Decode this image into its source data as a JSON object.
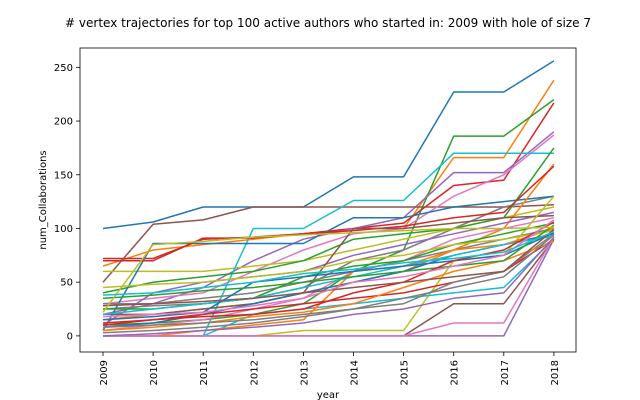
{
  "chart_data": {
    "type": "line",
    "title": "# vertex trajectories for top 100 active authors who started in: 2009 with hole of size 7",
    "xlabel": "year",
    "ylabel": "num_Collaborations",
    "categories": [
      "2009",
      "2010",
      "2011",
      "2012",
      "2013",
      "2014",
      "2015",
      "2016",
      "2017",
      "2018"
    ],
    "ylim": [
      -15,
      268
    ],
    "yticks": [
      0,
      50,
      100,
      150,
      200,
      250
    ],
    "grid": false,
    "legend": "none",
    "palette": [
      "#1f77b4",
      "#ff7f0e",
      "#2ca02c",
      "#d62728",
      "#9467bd",
      "#8c564b",
      "#e377c2",
      "#7f7f7f",
      "#bcbd22",
      "#17becf"
    ],
    "series": [
      {
        "values": [
          100,
          106,
          120,
          120,
          120,
          148,
          148,
          227,
          227,
          256
        ]
      },
      {
        "values": [
          65,
          80,
          85,
          90,
          95,
          100,
          100,
          166,
          166,
          238
        ]
      },
      {
        "values": [
          10,
          12,
          15,
          20,
          30,
          60,
          80,
          186,
          186,
          220
        ]
      },
      {
        "values": [
          72,
          72,
          90,
          92,
          95,
          100,
          105,
          140,
          145,
          217
        ]
      },
      {
        "values": [
          20,
          30,
          45,
          70,
          90,
          100,
          110,
          152,
          152,
          190
        ]
      },
      {
        "values": [
          50,
          104,
          108,
          120,
          120,
          120,
          120,
          120,
          120,
          122
        ]
      },
      {
        "values": [
          30,
          35,
          40,
          60,
          80,
          95,
          100,
          130,
          150,
          187
        ]
      },
      {
        "values": [
          25,
          28,
          30,
          35,
          45,
          70,
          80,
          100,
          120,
          130
        ]
      },
      {
        "values": [
          60,
          60,
          60,
          65,
          70,
          80,
          90,
          100,
          110,
          120
        ]
      },
      {
        "values": [
          0,
          0,
          0,
          100,
          100,
          126,
          126,
          170,
          170,
          170
        ]
      },
      {
        "values": [
          5,
          86,
          86,
          86,
          86,
          110,
          110,
          120,
          125,
          130
        ]
      },
      {
        "values": [
          15,
          20,
          25,
          30,
          40,
          50,
          60,
          80,
          100,
          160
        ]
      },
      {
        "values": [
          40,
          50,
          55,
          60,
          70,
          90,
          95,
          100,
          110,
          175
        ]
      },
      {
        "values": [
          70,
          70,
          91,
          91,
          95,
          98,
          102,
          110,
          115,
          158
        ]
      },
      {
        "values": [
          10,
          40,
          50,
          55,
          60,
          75,
          85,
          95,
          105,
          115
        ]
      },
      {
        "values": [
          20,
          20,
          25,
          30,
          40,
          100,
          100,
          105,
          110,
          112
        ]
      },
      {
        "values": [
          5,
          10,
          15,
          25,
          35,
          60,
          70,
          90,
          100,
          110
        ]
      },
      {
        "values": [
          30,
          30,
          35,
          40,
          50,
          60,
          70,
          80,
          90,
          100
        ]
      },
      {
        "values": [
          0,
          0,
          0,
          0,
          5,
          5,
          5,
          70,
          75,
          130
        ]
      },
      {
        "values": [
          0,
          0,
          0,
          20,
          25,
          30,
          35,
          40,
          45,
          90
        ]
      },
      {
        "values": [
          8,
          12,
          20,
          30,
          40,
          50,
          60,
          75,
          85,
          95
        ]
      },
      {
        "values": [
          0,
          0,
          5,
          10,
          15,
          60,
          65,
          80,
          85,
          100
        ]
      },
      {
        "values": [
          25,
          25,
          30,
          35,
          55,
          65,
          70,
          85,
          95,
          105
        ]
      },
      {
        "values": [
          10,
          15,
          20,
          25,
          30,
          35,
          40,
          50,
          60,
          90
        ]
      },
      {
        "values": [
          0,
          0,
          0,
          0,
          0,
          0,
          0,
          0,
          0,
          90
        ]
      },
      {
        "values": [
          0,
          0,
          0,
          0,
          0,
          0,
          0,
          30,
          30,
          90
        ]
      },
      {
        "values": [
          0,
          0,
          0,
          0,
          0,
          0,
          0,
          12,
          12,
          92
        ]
      },
      {
        "values": [
          3,
          5,
          8,
          12,
          18,
          25,
          30,
          50,
          60,
          95
        ]
      },
      {
        "values": [
          45,
          48,
          50,
          55,
          60,
          70,
          75,
          85,
          90,
          98
        ]
      },
      {
        "values": [
          20,
          25,
          30,
          35,
          45,
          55,
          65,
          75,
          85,
          93
        ]
      },
      {
        "values": [
          15,
          18,
          22,
          50,
          55,
          60,
          65,
          70,
          75,
          96
        ]
      },
      {
        "values": [
          5,
          8,
          12,
          18,
          22,
          30,
          45,
          60,
          70,
          88
        ]
      },
      {
        "values": [
          35,
          38,
          42,
          45,
          50,
          55,
          60,
          65,
          70,
          103
        ]
      },
      {
        "values": [
          12,
          15,
          18,
          20,
          25,
          40,
          50,
          70,
          80,
          106
        ]
      },
      {
        "values": [
          0,
          2,
          5,
          8,
          12,
          20,
          25,
          35,
          40,
          92
        ]
      },
      {
        "values": [
          28,
          30,
          32,
          35,
          40,
          45,
          50,
          55,
          60,
          99
        ]
      },
      {
        "values": [
          18,
          20,
          22,
          28,
          35,
          50,
          55,
          65,
          75,
          108
        ]
      },
      {
        "values": [
          8,
          10,
          12,
          15,
          20,
          25,
          35,
          45,
          55,
          94
        ]
      },
      {
        "values": [
          22,
          85,
          88,
          92,
          94,
          96,
          98,
          100,
          100,
          101
        ]
      },
      {
        "values": [
          38,
          40,
          45,
          50,
          58,
          62,
          68,
          72,
          78,
          97
        ]
      }
    ]
  }
}
